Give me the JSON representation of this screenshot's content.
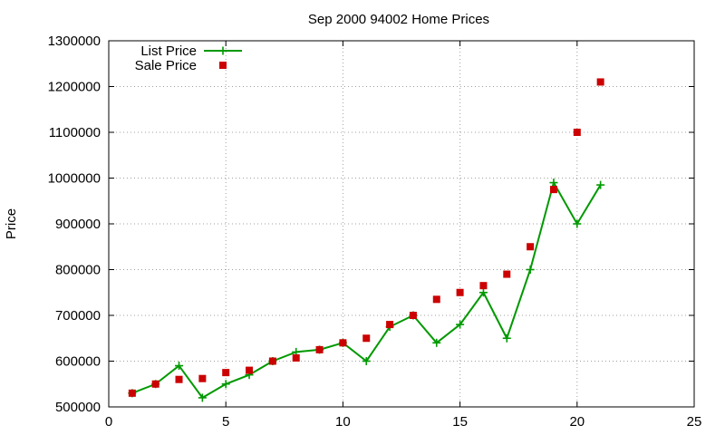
{
  "chart_data": {
    "type": "line",
    "title": "Sep 2000 94002 Home Prices",
    "xlabel": "",
    "ylabel": "Price",
    "xlim": [
      0,
      25
    ],
    "ylim": [
      500000,
      1300000
    ],
    "x_ticks": [
      0,
      5,
      10,
      15,
      20,
      25
    ],
    "y_ticks": [
      500000,
      600000,
      700000,
      800000,
      900000,
      1000000,
      1100000,
      1200000,
      1300000
    ],
    "grid": true,
    "legend_position": "top-left",
    "series": [
      {
        "name": "List Price",
        "kind": "line-with-plus-markers",
        "color": "#009900",
        "x": [
          1,
          2,
          3,
          4,
          5,
          6,
          7,
          8,
          9,
          10,
          11,
          12,
          13,
          14,
          15,
          16,
          17,
          18,
          19,
          20,
          21
        ],
        "y": [
          530000,
          550000,
          590000,
          520000,
          550000,
          570000,
          600000,
          620000,
          625000,
          640000,
          600000,
          675000,
          700000,
          640000,
          680000,
          750000,
          650000,
          800000,
          990000,
          900000,
          985000
        ]
      },
      {
        "name": "Sale Price",
        "kind": "square-markers",
        "color": "#cc0000",
        "x": [
          1,
          2,
          3,
          4,
          5,
          6,
          7,
          8,
          9,
          10,
          11,
          12,
          13,
          14,
          15,
          16,
          17,
          18,
          19,
          20,
          21
        ],
        "y": [
          530000,
          550000,
          560000,
          562000,
          575000,
          580000,
          600000,
          607000,
          625000,
          640000,
          650000,
          680000,
          700000,
          735000,
          750000,
          765000,
          790000,
          850000,
          975000,
          1100000,
          1210000
        ]
      }
    ]
  }
}
